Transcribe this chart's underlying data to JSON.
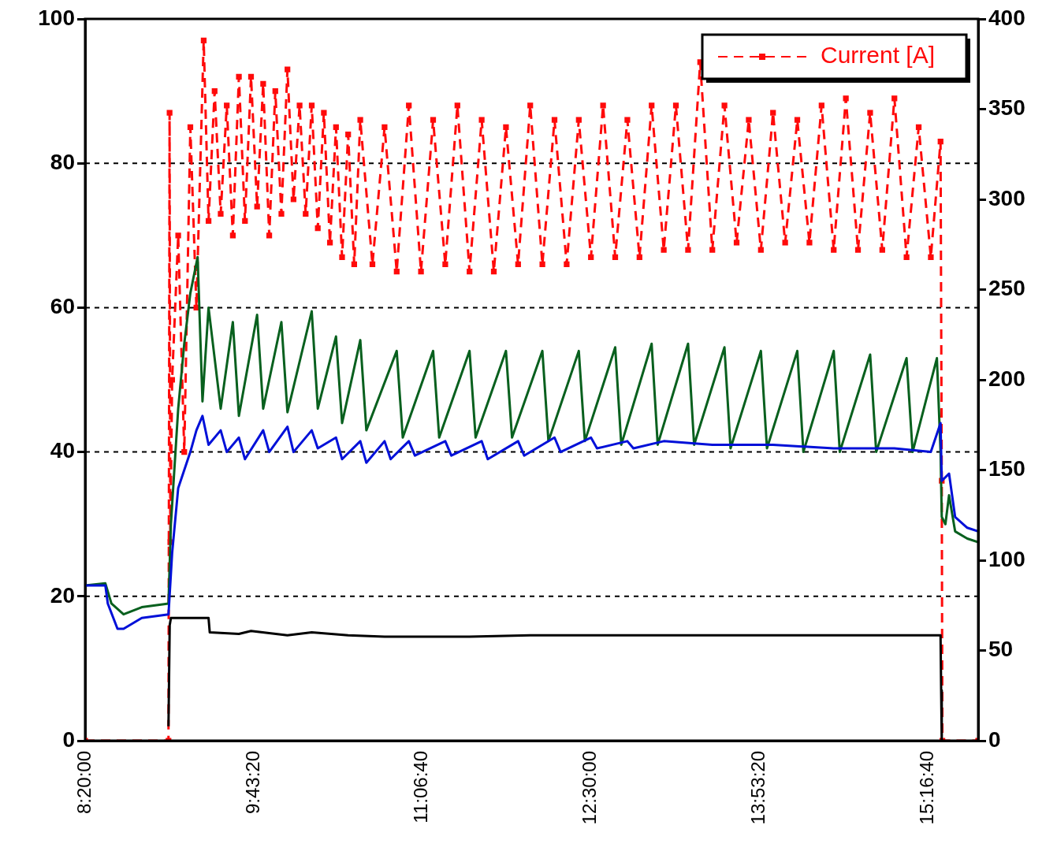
{
  "chart_data": {
    "type": "line",
    "xlim": [
      8.3333,
      15.69
    ],
    "ylim": [
      0,
      100
    ],
    "y2lim": [
      0,
      400
    ],
    "xticks": [
      {
        "value": 8.3333,
        "label": "8:20:00"
      },
      {
        "value": 9.7222,
        "label": "9:43:20"
      },
      {
        "value": 11.1111,
        "label": "11:06:40"
      },
      {
        "value": 12.5,
        "label": "12:30:00"
      },
      {
        "value": 13.8889,
        "label": "13:53:20"
      },
      {
        "value": 15.2778,
        "label": "15:16:40"
      }
    ],
    "yticks": [
      0,
      20,
      40,
      60,
      80,
      100
    ],
    "y2ticks": [
      0,
      50,
      100,
      150,
      200,
      250,
      300,
      350,
      400
    ],
    "grid": "y",
    "legend": "top right",
    "series": [
      {
        "color": "#0010d8",
        "x": [
          8.3333,
          8.5,
          8.52,
          8.6,
          8.65,
          8.8,
          9.02,
          9.05,
          9.1,
          9.2,
          9.25,
          9.3,
          9.35,
          9.45,
          9.5,
          9.6,
          9.65,
          9.8,
          9.85,
          10.0,
          10.05,
          10.2,
          10.25,
          10.4,
          10.45,
          10.6,
          10.65,
          10.8,
          10.85,
          11.0,
          11.05,
          11.3,
          11.35,
          11.6,
          11.65,
          11.9,
          11.95,
          12.2,
          12.25,
          12.5,
          12.55,
          12.8,
          12.85,
          13.1,
          13.5,
          14.0,
          14.5,
          15.0,
          15.3,
          15.38,
          15.39,
          15.45,
          15.5,
          15.6,
          15.69
        ],
        "values": [
          21.5,
          21.5,
          19,
          15.5,
          15.5,
          17,
          17.5,
          26,
          35,
          40,
          43,
          45,
          41,
          43,
          40,
          42,
          39,
          43,
          40,
          43.5,
          40,
          43,
          40.5,
          42,
          39,
          41.5,
          38.5,
          41.5,
          39,
          41.5,
          39.5,
          41.5,
          39.5,
          41.5,
          39,
          41.5,
          39.5,
          42,
          40,
          42,
          40.5,
          41.5,
          40.5,
          41.5,
          41,
          41,
          40.5,
          40.5,
          40,
          44,
          36,
          37,
          31,
          29.5,
          29
        ]
      },
      {
        "color": "#08601e",
        "x": [
          8.3333,
          8.5,
          8.55,
          8.65,
          8.8,
          9.02,
          9.04,
          9.1,
          9.15,
          9.2,
          9.26,
          9.3,
          9.35,
          9.45,
          9.55,
          9.6,
          9.75,
          9.8,
          9.95,
          10.0,
          10.2,
          10.25,
          10.4,
          10.45,
          10.6,
          10.65,
          10.9,
          10.95,
          11.2,
          11.25,
          11.5,
          11.55,
          11.8,
          11.85,
          12.1,
          12.15,
          12.4,
          12.45,
          12.7,
          12.75,
          13.0,
          13.05,
          13.3,
          13.35,
          13.6,
          13.65,
          13.9,
          13.95,
          14.2,
          14.25,
          14.5,
          14.55,
          14.8,
          14.85,
          15.1,
          15.15,
          15.35,
          15.38,
          15.39,
          15.42,
          15.45,
          15.5,
          15.6,
          15.69
        ],
        "values": [
          21.5,
          21.8,
          19,
          17.5,
          18.5,
          19,
          30,
          46,
          55,
          62,
          67,
          47,
          60,
          46,
          58,
          45,
          59,
          46,
          58,
          45.5,
          59.5,
          46,
          56,
          44,
          55.5,
          43,
          54,
          42,
          54,
          42,
          54,
          42,
          54,
          42,
          54,
          41.5,
          54,
          41.5,
          54.5,
          41,
          55,
          41,
          55,
          41,
          54.5,
          40.5,
          54,
          40.5,
          54,
          40,
          54,
          40,
          53.5,
          40,
          53,
          40,
          53,
          40,
          31,
          30,
          34,
          29,
          28,
          27.5
        ]
      },
      {
        "color": "#000000",
        "x": [
          9.02,
          9.03,
          9.04,
          9.35,
          9.36,
          9.6,
          9.7,
          10.0,
          10.2,
          10.5,
          10.8,
          11.5,
          12.0,
          13.0,
          14.0,
          15.0,
          15.38,
          15.385,
          15.39
        ],
        "values": [
          2,
          16,
          17,
          17,
          15,
          14.8,
          15.2,
          14.6,
          15,
          14.6,
          14.4,
          14.4,
          14.6,
          14.6,
          14.6,
          14.6,
          14.6,
          7,
          0
        ]
      },
      {
        "name": "Current [A]",
        "color": "#ff0a0a",
        "axis": "y2",
        "line_style": "dashed",
        "marker": "square",
        "x": [
          8.3333,
          9.02,
          9.029,
          9.035,
          9.05,
          9.1,
          9.15,
          9.2,
          9.25,
          9.31,
          9.35,
          9.4,
          9.45,
          9.5,
          9.55,
          9.6,
          9.65,
          9.7,
          9.75,
          9.8,
          9.85,
          9.9,
          9.95,
          10.0,
          10.05,
          10.1,
          10.15,
          10.2,
          10.25,
          10.3,
          10.35,
          10.4,
          10.45,
          10.5,
          10.55,
          10.6,
          10.7,
          10.8,
          10.9,
          11.0,
          11.1,
          11.2,
          11.3,
          11.4,
          11.5,
          11.6,
          11.7,
          11.8,
          11.9,
          12.0,
          12.1,
          12.2,
          12.3,
          12.4,
          12.5,
          12.6,
          12.7,
          12.8,
          12.9,
          13.0,
          13.1,
          13.2,
          13.3,
          13.4,
          13.5,
          13.6,
          13.7,
          13.8,
          13.9,
          14.0,
          14.1,
          14.2,
          14.3,
          14.4,
          14.5,
          14.6,
          14.7,
          14.8,
          14.9,
          15.0,
          15.1,
          15.2,
          15.3,
          15.38,
          15.39,
          15.395,
          15.69
        ],
        "values": [
          0,
          0,
          348,
          110,
          200,
          280,
          160,
          340,
          240,
          388,
          288,
          360,
          292,
          352,
          280,
          368,
          288,
          368,
          296,
          364,
          280,
          360,
          292,
          372,
          300,
          352,
          292,
          352,
          284,
          348,
          276,
          340,
          268,
          336,
          264,
          344,
          264,
          340,
          260,
          352,
          260,
          344,
          264,
          352,
          260,
          344,
          260,
          340,
          264,
          352,
          264,
          344,
          264,
          344,
          268,
          352,
          268,
          344,
          268,
          352,
          272,
          352,
          272,
          376,
          272,
          352,
          276,
          344,
          272,
          348,
          276,
          344,
          276,
          352,
          272,
          356,
          272,
          348,
          272,
          356,
          268,
          340,
          268,
          332,
          144,
          0,
          0
        ]
      }
    ]
  }
}
